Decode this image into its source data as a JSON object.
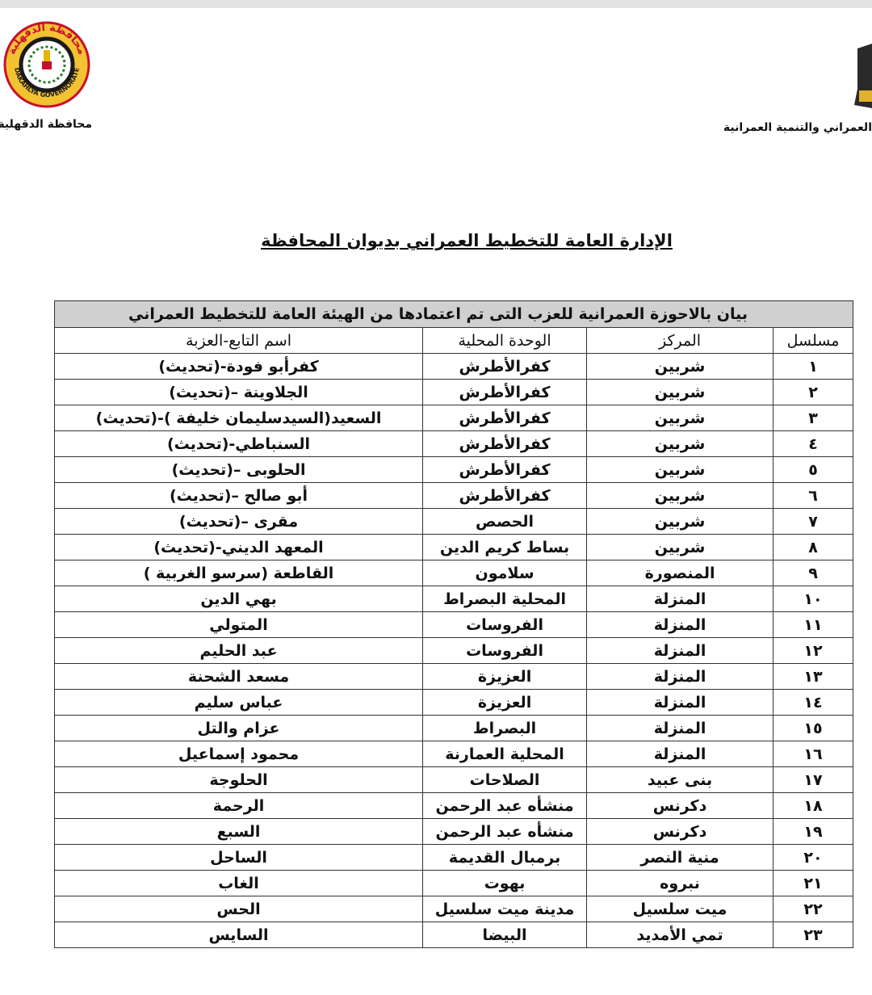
{
  "header": {
    "left_logo": {
      "arabic": "محافظة الدقهلية",
      "english": "DAKAHLYA GOVERNORATE"
    },
    "left_caption": "محافظة الدقهلية",
    "right_caption": "العمراني والتنمية العمرانية"
  },
  "title": "الإدارة العامة للتخطيط العمراني بديوان المحافظة",
  "table": {
    "caption": "بيان بالاحوزة العمرانية للعزب التى تم اعتمادها من الهيئة العامة للتخطيط العمراني",
    "columns": [
      "مسلسل",
      "المركز",
      "الوحدة المحلية",
      "اسم التابع-العزبة"
    ],
    "rows": [
      [
        "١",
        "شربين",
        "كفرالأطرش",
        "كفرأبو فودة-(تحديث)"
      ],
      [
        "٢",
        "شربين",
        "كفرالأطرش",
        "الجلاوينة –(تحديث)"
      ],
      [
        "٣",
        "شربين",
        "كفرالأطرش",
        "السعيد(السيدسليمان خليفة )-(تحديث)"
      ],
      [
        "٤",
        "شربين",
        "كفرالأطرش",
        "السنباطي-(تحديث)"
      ],
      [
        "٥",
        "شربين",
        "كفرالأطرش",
        "الحلوبى –(تحديث)"
      ],
      [
        "٦",
        "شربين",
        "كفرالأطرش",
        "أبو صالح –(تحديث)"
      ],
      [
        "٧",
        "شربين",
        "الحصص",
        "مقرى –(تحديث)"
      ],
      [
        "٨",
        "شربين",
        "بساط كريم الدين",
        "المعهد الديني-(تحديث)"
      ],
      [
        "٩",
        "المنصورة",
        "سلامون",
        "القاطعة (سرسو الغربية )"
      ],
      [
        "١٠",
        "المنزلة",
        "المحلية البصراط",
        "بهي الدين"
      ],
      [
        "١١",
        "المنزلة",
        "الفروسات",
        "المتولي"
      ],
      [
        "١٢",
        "المنزلة",
        "الفروسات",
        "عبد الحليم"
      ],
      [
        "١٣",
        "المنزلة",
        "العزيزة",
        "مسعد الشحنة"
      ],
      [
        "١٤",
        "المنزلة",
        "العزيزة",
        "عباس سليم"
      ],
      [
        "١٥",
        "المنزلة",
        "البصراط",
        "عزام والتل"
      ],
      [
        "١٦",
        "المنزلة",
        "المحلية العمارنة",
        "محمود إسماعيل"
      ],
      [
        "١٧",
        "بنى عبيد",
        "الصلاحات",
        "الحلوجة"
      ],
      [
        "١٨",
        "دكرنس",
        "منشأه عبد الرحمن",
        "الرحمة"
      ],
      [
        "١٩",
        "دكرنس",
        "منشأه عبد الرحمن",
        "السبع"
      ],
      [
        "٢٠",
        "منية النصر",
        "برمبال القديمة",
        "الساحل"
      ],
      [
        "٢١",
        "نبروه",
        "بهوت",
        "الغاب"
      ],
      [
        "٢٢",
        "ميت سلسيل",
        "مدينة ميت سلسيل",
        "الحس"
      ],
      [
        "٢٣",
        "تمي الأمديد",
        "البيضا",
        "السايس"
      ]
    ]
  }
}
